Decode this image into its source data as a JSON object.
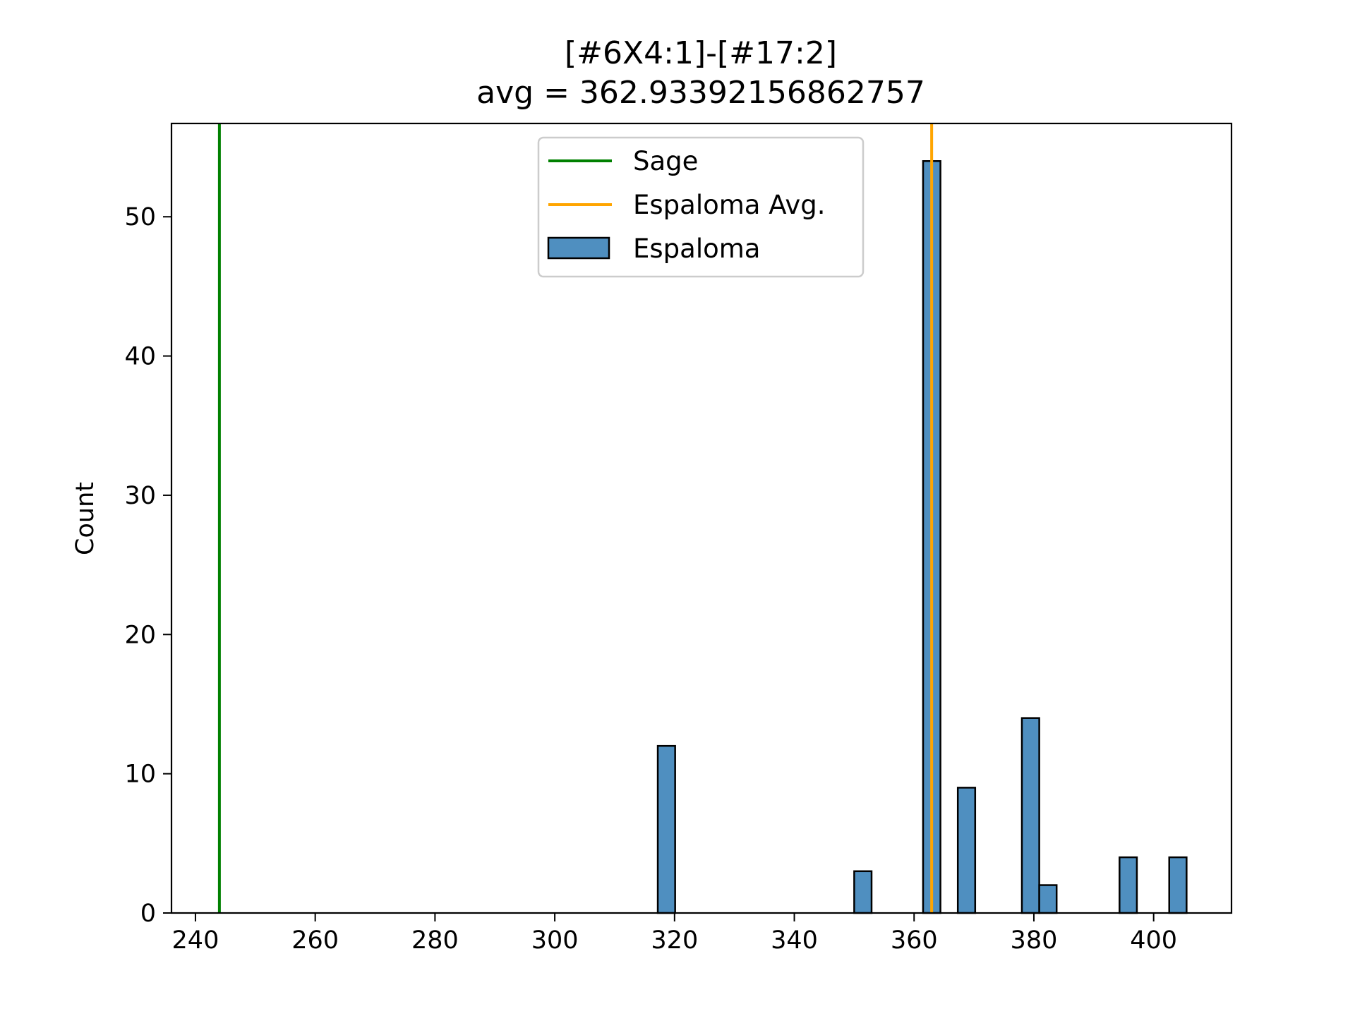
{
  "chart_data": {
    "type": "bar",
    "title": "[#6X4:1]-[#17:2]",
    "subtitle": "avg = 362.93392156862757",
    "xlabel": "",
    "ylabel": "Count",
    "xlim": [
      236,
      413
    ],
    "ylim": [
      0,
      56.7
    ],
    "x_ticks": [
      240,
      260,
      280,
      300,
      320,
      340,
      360,
      380,
      400
    ],
    "y_ticks": [
      0,
      10,
      20,
      30,
      40,
      50
    ],
    "bin_width": 2.9,
    "grid": false,
    "legend_position": "top-center",
    "series": [
      {
        "name": "Espaloma",
        "kind": "histogram",
        "color": "#4f8fc0",
        "bins": [
          {
            "x0": 317.2,
            "x1": 320.1,
            "count": 12
          },
          {
            "x0": 350.0,
            "x1": 352.9,
            "count": 3
          },
          {
            "x0": 361.5,
            "x1": 364.4,
            "count": 54
          },
          {
            "x0": 367.3,
            "x1": 370.2,
            "count": 9
          },
          {
            "x0": 378.0,
            "x1": 380.9,
            "count": 14
          },
          {
            "x0": 380.9,
            "x1": 383.8,
            "count": 2
          },
          {
            "x0": 394.3,
            "x1": 397.2,
            "count": 4
          },
          {
            "x0": 402.6,
            "x1": 405.5,
            "count": 4
          }
        ]
      },
      {
        "name": "Sage",
        "kind": "vline",
        "x": 244.0,
        "color": "#008000"
      },
      {
        "name": "Espaloma Avg.",
        "kind": "vline",
        "x": 362.93392156862757,
        "color": "#ffa500"
      }
    ],
    "legend": [
      "Sage",
      "Espaloma Avg.",
      "Espaloma"
    ]
  }
}
